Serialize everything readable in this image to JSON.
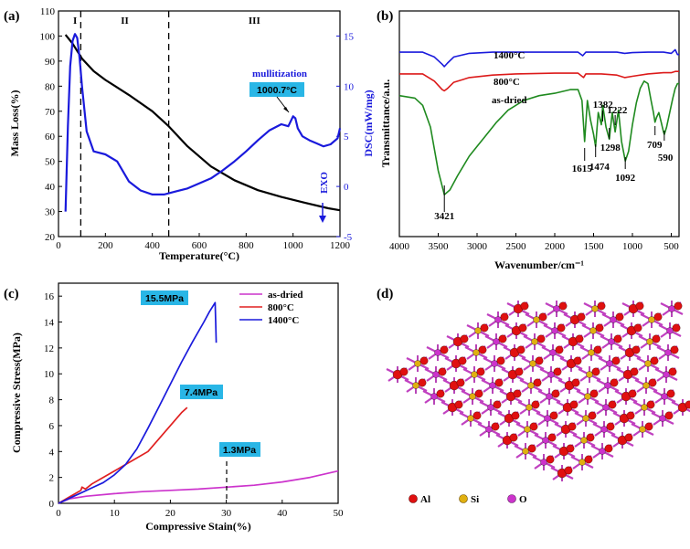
{
  "figure": {
    "panels": [
      "(a)",
      "(b)",
      "(c)",
      "(d)"
    ]
  },
  "chart_data": [
    {
      "id": "a",
      "type": "line",
      "xlabel": "Temperature(°C)",
      "ylabel": "Mass Loss(%)",
      "y2label": "DSC(mW/mg)",
      "xlim": [
        0,
        1200
      ],
      "ylim": [
        20,
        110
      ],
      "y2lim": [
        -5,
        17.5
      ],
      "xticks": [
        0,
        200,
        400,
        600,
        800,
        1000,
        1200
      ],
      "yticks": [
        20,
        30,
        40,
        50,
        60,
        70,
        80,
        90,
        100,
        110
      ],
      "y2ticks": [
        -5,
        0,
        5,
        10,
        15
      ],
      "regions": [
        "I",
        "II",
        "III"
      ],
      "region_bounds": [
        95,
        470
      ],
      "annotations": {
        "mullitization": "mullitization",
        "peak": "1000.7°C",
        "exo": "EXO"
      },
      "series": [
        {
          "name": "Mass Loss",
          "axis": "left",
          "color": "#000000",
          "x": [
            30,
            60,
            100,
            150,
            200,
            300,
            400,
            470,
            550,
            650,
            750,
            850,
            950,
            1050,
            1150,
            1200
          ],
          "y": [
            100.5,
            97,
            91,
            86,
            82.5,
            76.5,
            70,
            64,
            56,
            48,
            42.5,
            38.5,
            35.8,
            33.5,
            31.3,
            30.5
          ]
        },
        {
          "name": "DSC",
          "axis": "right",
          "color": "#1a1adc",
          "x": [
            30,
            40,
            50,
            60,
            70,
            80,
            90,
            100,
            120,
            150,
            200,
            250,
            300,
            350,
            400,
            450,
            500,
            550,
            600,
            650,
            700,
            750,
            800,
            850,
            900,
            950,
            980,
            1000,
            1010,
            1020,
            1040,
            1070,
            1100,
            1130,
            1160,
            1190,
            1200
          ],
          "y": [
            -2.5,
            6,
            12,
            14.5,
            15.2,
            14.8,
            12.8,
            10,
            5.5,
            3.5,
            3.2,
            2.5,
            0.5,
            -0.4,
            -0.8,
            -0.8,
            -0.5,
            -0.2,
            0.3,
            0.8,
            1.6,
            2.5,
            3.5,
            4.6,
            5.6,
            6.2,
            6,
            7,
            6.8,
            5.8,
            5,
            4.6,
            4.3,
            4,
            4.2,
            4.8,
            5.8
          ]
        }
      ]
    },
    {
      "id": "b",
      "type": "line",
      "xlabel": "Wavenumber/cm⁻¹",
      "ylabel": "Transmittance/a.u.",
      "xlim": [
        4000,
        400
      ],
      "xticks": [
        4000,
        3500,
        3000,
        2500,
        2000,
        1500,
        1000,
        500
      ],
      "peak_labels": [
        "3421",
        "1615",
        "1474",
        "1382",
        "1298",
        "1222",
        "1092",
        "709",
        "590"
      ],
      "series": [
        {
          "name": "1400°C",
          "color": "#1a1adc",
          "x": [
            4000,
            3700,
            3550,
            3450,
            3421,
            3380,
            3300,
            3100,
            2800,
            2500,
            2000,
            1700,
            1640,
            1600,
            1400,
            1200,
            1100,
            1000,
            800,
            600,
            500,
            450,
            420,
            400
          ],
          "y": [
            91,
            91,
            89,
            86,
            85,
            86.5,
            89,
            90.5,
            91,
            91,
            91,
            91,
            89.5,
            91,
            91,
            91,
            90.5,
            90.8,
            91,
            91,
            90.5,
            92,
            90,
            90
          ]
        },
        {
          "name": "800°C",
          "color": "#dc1a1a",
          "x": [
            4000,
            3700,
            3550,
            3450,
            3421,
            3380,
            3300,
            3100,
            2800,
            2500,
            2000,
            1700,
            1630,
            1600,
            1400,
            1200,
            1100,
            1000,
            800,
            600,
            500,
            450,
            400
          ],
          "y": [
            82,
            82,
            79,
            75.5,
            75,
            76,
            78.5,
            80.5,
            81.5,
            82,
            82.3,
            82.3,
            80.5,
            82,
            82,
            81.5,
            80.5,
            81,
            82,
            82.5,
            82.5,
            83,
            83
          ]
        },
        {
          "name": "as-dried",
          "color": "#1f8a1f",
          "x": [
            4000,
            3800,
            3700,
            3600,
            3500,
            3421,
            3350,
            3250,
            3100,
            3000,
            2900,
            2750,
            2600,
            2400,
            2200,
            2000,
            1800,
            1700,
            1650,
            1615,
            1580,
            1540,
            1500,
            1474,
            1440,
            1400,
            1382,
            1340,
            1298,
            1260,
            1222,
            1180,
            1140,
            1092,
            1050,
            1000,
            950,
            900,
            850,
            800,
            760,
            730,
            709,
            690,
            660,
            630,
            600,
            590,
            560,
            520,
            480,
            450,
            420,
            400
          ],
          "y": [
            73,
            72,
            69,
            60,
            42,
            32,
            34,
            40,
            48,
            52,
            56,
            62,
            67,
            71,
            73,
            74,
            75.5,
            75.5,
            71,
            54,
            71,
            63,
            57,
            52,
            66,
            61,
            69,
            60,
            55,
            66,
            58,
            67,
            54,
            46,
            50,
            61,
            70,
            76,
            79,
            78,
            71,
            66,
            62,
            64,
            66,
            62,
            58,
            57,
            60,
            66,
            72,
            76,
            78,
            78
          ]
        }
      ]
    },
    {
      "id": "c",
      "type": "line",
      "xlabel": "Compressive Stain(%)",
      "ylabel": "Compressive Stress(MPa)",
      "xlim": [
        0,
        50
      ],
      "ylim": [
        0,
        17
      ],
      "xticks": [
        0,
        10,
        20,
        30,
        40,
        50
      ],
      "yticks": [
        0,
        2,
        4,
        6,
        8,
        10,
        12,
        14,
        16
      ],
      "peak_labels": [
        "15.5MPa",
        "7.4MPa",
        "1.3MPa"
      ],
      "series": [
        {
          "name": "as-dried",
          "color": "#cc33cc",
          "x": [
            0,
            2,
            5,
            10,
            15,
            20,
            25,
            30,
            35,
            40,
            45,
            50
          ],
          "y": [
            0,
            0.35,
            0.55,
            0.75,
            0.9,
            1.0,
            1.1,
            1.25,
            1.4,
            1.65,
            2.0,
            2.5
          ]
        },
        {
          "name": "800°C",
          "color": "#e02020",
          "x": [
            0,
            2,
            4,
            4.2,
            4.8,
            6,
            8,
            10,
            12,
            14,
            16,
            18,
            20,
            22,
            23
          ],
          "y": [
            0,
            0.5,
            1.0,
            1.25,
            1.1,
            1.5,
            2.0,
            2.5,
            3.0,
            3.5,
            4.0,
            5.0,
            6.0,
            7.0,
            7.4
          ]
        },
        {
          "name": "1400°C",
          "color": "#1a1adc",
          "x": [
            0,
            2,
            4,
            6,
            8,
            10,
            12,
            14,
            16,
            18,
            20,
            22,
            24,
            26,
            27,
            28,
            28.1,
            28.2
          ],
          "y": [
            0,
            0.4,
            0.8,
            1.2,
            1.6,
            2.2,
            3.0,
            4.2,
            5.8,
            7.5,
            9.2,
            10.9,
            12.5,
            14.0,
            14.8,
            15.5,
            14,
            12.4
          ]
        }
      ]
    }
  ],
  "legend_c": [
    "as-dried",
    "800°C",
    "1400°C"
  ],
  "legend_b": [
    "1400°C",
    "800°C",
    "as-dried"
  ],
  "panel_d": {
    "legend": [
      {
        "label": "Al",
        "color": "#e01010"
      },
      {
        "label": "Si",
        "color": "#e0b010"
      },
      {
        "label": "O",
        "color": "#cc33cc"
      }
    ]
  }
}
